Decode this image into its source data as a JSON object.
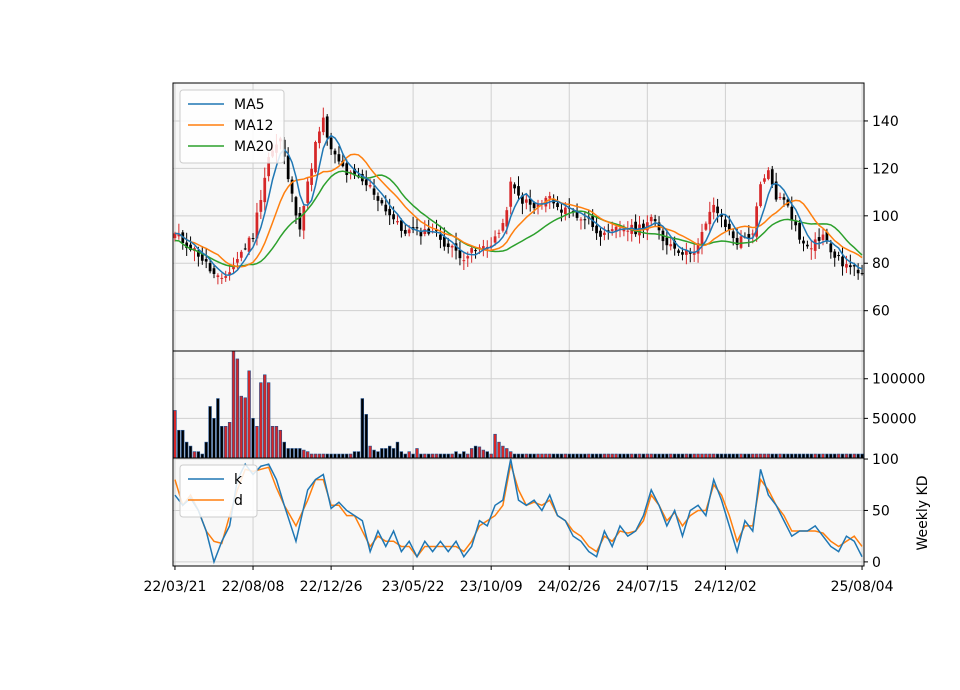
{
  "chart_data": {
    "type": "candlestick-composite",
    "x_tick_labels": [
      "22/03/21",
      "22/08/08",
      "22/12/26",
      "23/05/22",
      "23/10/09",
      "24/02/26",
      "24/07/15",
      "24/12/02",
      "25/08/04"
    ],
    "x_ticks": [
      {
        "label": "22/03/21",
        "index": 0
      },
      {
        "label": "22/08/08",
        "index": 20
      },
      {
        "label": "22/12/26",
        "index": 40
      },
      {
        "label": "23/05/22",
        "index": 61
      },
      {
        "label": "23/10/09",
        "index": 81
      },
      {
        "label": "24/02/26",
        "index": 101
      },
      {
        "label": "24/07/15",
        "index": 121
      },
      {
        "label": "24/12/02",
        "index": 141
      },
      {
        "label": "25/08/04",
        "index": 176
      }
    ],
    "n_weeks": 177,
    "price_panel": {
      "ylim": [
        43,
        156
      ],
      "yticks": [
        60,
        80,
        100,
        120,
        140
      ],
      "legend": [
        "MA5",
        "MA12",
        "MA20"
      ],
      "legend_position": "top-left",
      "close_anchors": [
        [
          0,
          92
        ],
        [
          6,
          84
        ],
        [
          10,
          75
        ],
        [
          12,
          72
        ],
        [
          16,
          82
        ],
        [
          20,
          92
        ],
        [
          24,
          125
        ],
        [
          27,
          132
        ],
        [
          30,
          108
        ],
        [
          32,
          96
        ],
        [
          36,
          130
        ],
        [
          38,
          140
        ],
        [
          40,
          127
        ],
        [
          44,
          118
        ],
        [
          50,
          112
        ],
        [
          54,
          103
        ],
        [
          58,
          94
        ],
        [
          62,
          93
        ],
        [
          66,
          94
        ],
        [
          70,
          87
        ],
        [
          74,
          83
        ],
        [
          78,
          86
        ],
        [
          80,
          87
        ],
        [
          84,
          95
        ],
        [
          86,
          113
        ],
        [
          88,
          108
        ],
        [
          92,
          103
        ],
        [
          96,
          108
        ],
        [
          98,
          102
        ],
        [
          100,
          104
        ],
        [
          103,
          100
        ],
        [
          106,
          98
        ],
        [
          110,
          91
        ],
        [
          114,
          95
        ],
        [
          118,
          94
        ],
        [
          122,
          99
        ],
        [
          125,
          90
        ],
        [
          128,
          87
        ],
        [
          131,
          84
        ],
        [
          134,
          88
        ],
        [
          136,
          96
        ],
        [
          138,
          105
        ],
        [
          140,
          98
        ],
        [
          144,
          89
        ],
        [
          148,
          93
        ],
        [
          150,
          112
        ],
        [
          152,
          118
        ],
        [
          154,
          108
        ],
        [
          157,
          105
        ],
        [
          160,
          90
        ],
        [
          163,
          88
        ],
        [
          166,
          92
        ],
        [
          168,
          85
        ],
        [
          171,
          80
        ],
        [
          174,
          77
        ],
        [
          176,
          77
        ]
      ]
    },
    "volume_panel": {
      "ylim": [
        0,
        135000
      ],
      "yticks": [
        50000,
        100000
      ],
      "values": [
        60000,
        35000,
        35000,
        20000,
        15000,
        8000,
        8000,
        5000,
        20000,
        65000,
        50000,
        75000,
        40000,
        40000,
        45000,
        135000,
        125000,
        78000,
        76000,
        110000,
        50000,
        40000,
        95000,
        105000,
        95000,
        40000,
        40000,
        35000,
        20000,
        12000,
        12000,
        12000,
        12000,
        10000,
        8000,
        5000,
        5000,
        5000,
        5000,
        5000,
        5000,
        5000,
        5000,
        5000,
        5000,
        5000,
        8000,
        8000,
        75000,
        55000,
        15000,
        10000,
        8000,
        12000,
        12000,
        15000,
        12000,
        20000,
        8000,
        5000,
        8000,
        5000,
        12000,
        5000,
        5000,
        5000,
        5000,
        5000,
        5000,
        5000,
        5000,
        5000,
        8000,
        5000,
        8000,
        5000,
        12000,
        15000,
        14000,
        10000,
        8000,
        5000,
        30000,
        20000,
        15000,
        12000,
        8000,
        5000,
        5000,
        5000,
        5000,
        5000,
        5000,
        5000,
        5000,
        5000,
        5000,
        5000,
        5000,
        5000,
        5000,
        5000,
        5000,
        5000,
        5000,
        5000,
        5000,
        5000,
        5000,
        5000,
        5000,
        5000,
        5000,
        5000,
        5000,
        5000,
        5000,
        5000,
        5000,
        5000,
        5000,
        5000,
        5000,
        5000,
        5000,
        5000,
        5000,
        5000,
        5000,
        5000,
        5000,
        5000,
        5000,
        5000,
        5000,
        5000,
        5000,
        5000,
        5000,
        5000,
        5000,
        5000,
        5000,
        5000,
        5000,
        5000,
        5000,
        5000,
        5000,
        5000,
        5000,
        5000,
        5000,
        5000,
        5000,
        5000,
        5000,
        5000,
        5000,
        5000,
        5000,
        5000,
        5000,
        5000,
        5000,
        5000,
        5000,
        5000,
        5000,
        5000,
        5000,
        5000,
        5000,
        5000,
        5000,
        5000,
        5000
      ]
    },
    "kd_panel": {
      "ylim": [
        -4,
        101
      ],
      "yticks": [
        0,
        50,
        100
      ],
      "ylabel": "Weekly KD",
      "legend": [
        "k",
        "d"
      ],
      "legend_position": "top-left",
      "k_anchors": [
        [
          0,
          65
        ],
        [
          2,
          55
        ],
        [
          4,
          62
        ],
        [
          6,
          50
        ],
        [
          8,
          30
        ],
        [
          10,
          0
        ],
        [
          12,
          20
        ],
        [
          14,
          35
        ],
        [
          16,
          80
        ],
        [
          18,
          95
        ],
        [
          20,
          85
        ],
        [
          22,
          93
        ],
        [
          24,
          95
        ],
        [
          26,
          80
        ],
        [
          28,
          55
        ],
        [
          31,
          20
        ],
        [
          34,
          70
        ],
        [
          36,
          80
        ],
        [
          38,
          85
        ],
        [
          40,
          52
        ],
        [
          42,
          58
        ],
        [
          44,
          50
        ],
        [
          46,
          45
        ],
        [
          48,
          40
        ],
        [
          50,
          10
        ],
        [
          52,
          30
        ],
        [
          54,
          15
        ],
        [
          56,
          30
        ],
        [
          58,
          10
        ],
        [
          60,
          20
        ],
        [
          62,
          5
        ],
        [
          64,
          20
        ],
        [
          66,
          10
        ],
        [
          68,
          20
        ],
        [
          70,
          10
        ],
        [
          72,
          20
        ],
        [
          74,
          5
        ],
        [
          76,
          15
        ],
        [
          78,
          40
        ],
        [
          80,
          35
        ],
        [
          82,
          55
        ],
        [
          84,
          60
        ],
        [
          86,
          100
        ],
        [
          88,
          60
        ],
        [
          90,
          55
        ],
        [
          92,
          60
        ],
        [
          94,
          50
        ],
        [
          96,
          65
        ],
        [
          98,
          45
        ],
        [
          100,
          40
        ],
        [
          102,
          25
        ],
        [
          104,
          20
        ],
        [
          106,
          10
        ],
        [
          108,
          5
        ],
        [
          110,
          30
        ],
        [
          112,
          15
        ],
        [
          114,
          35
        ],
        [
          116,
          25
        ],
        [
          118,
          30
        ],
        [
          120,
          45
        ],
        [
          122,
          70
        ],
        [
          124,
          55
        ],
        [
          126,
          35
        ],
        [
          128,
          50
        ],
        [
          130,
          25
        ],
        [
          132,
          50
        ],
        [
          134,
          55
        ],
        [
          136,
          45
        ],
        [
          138,
          80
        ],
        [
          140,
          60
        ],
        [
          142,
          35
        ],
        [
          144,
          10
        ],
        [
          146,
          40
        ],
        [
          148,
          30
        ],
        [
          150,
          90
        ],
        [
          152,
          65
        ],
        [
          154,
          55
        ],
        [
          156,
          40
        ],
        [
          158,
          25
        ],
        [
          160,
          30
        ],
        [
          162,
          30
        ],
        [
          164,
          35
        ],
        [
          166,
          25
        ],
        [
          168,
          15
        ],
        [
          170,
          10
        ],
        [
          172,
          25
        ],
        [
          174,
          20
        ],
        [
          176,
          5
        ]
      ],
      "d_anchors": [
        [
          0,
          80
        ],
        [
          2,
          55
        ],
        [
          4,
          65
        ],
        [
          6,
          50
        ],
        [
          8,
          30
        ],
        [
          10,
          20
        ],
        [
          12,
          18
        ],
        [
          14,
          45
        ],
        [
          16,
          70
        ],
        [
          18,
          90
        ],
        [
          20,
          88
        ],
        [
          22,
          90
        ],
        [
          24,
          92
        ],
        [
          26,
          72
        ],
        [
          28,
          55
        ],
        [
          31,
          35
        ],
        [
          34,
          60
        ],
        [
          36,
          80
        ],
        [
          38,
          80
        ],
        [
          40,
          55
        ],
        [
          42,
          55
        ],
        [
          44,
          45
        ],
        [
          46,
          45
        ],
        [
          48,
          30
        ],
        [
          50,
          15
        ],
        [
          52,
          25
        ],
        [
          54,
          20
        ],
        [
          56,
          20
        ],
        [
          58,
          15
        ],
        [
          60,
          15
        ],
        [
          62,
          5
        ],
        [
          64,
          15
        ],
        [
          66,
          15
        ],
        [
          68,
          15
        ],
        [
          70,
          15
        ],
        [
          72,
          15
        ],
        [
          74,
          10
        ],
        [
          76,
          20
        ],
        [
          78,
          35
        ],
        [
          80,
          40
        ],
        [
          82,
          45
        ],
        [
          84,
          55
        ],
        [
          86,
          95
        ],
        [
          88,
          70
        ],
        [
          90,
          55
        ],
        [
          92,
          58
        ],
        [
          94,
          55
        ],
        [
          96,
          60
        ],
        [
          98,
          45
        ],
        [
          100,
          40
        ],
        [
          102,
          30
        ],
        [
          104,
          25
        ],
        [
          106,
          15
        ],
        [
          108,
          10
        ],
        [
          110,
          25
        ],
        [
          112,
          20
        ],
        [
          114,
          30
        ],
        [
          116,
          28
        ],
        [
          118,
          30
        ],
        [
          120,
          40
        ],
        [
          122,
          65
        ],
        [
          124,
          55
        ],
        [
          126,
          40
        ],
        [
          128,
          48
        ],
        [
          130,
          35
        ],
        [
          132,
          45
        ],
        [
          134,
          50
        ],
        [
          136,
          50
        ],
        [
          138,
          75
        ],
        [
          140,
          65
        ],
        [
          142,
          45
        ],
        [
          144,
          20
        ],
        [
          146,
          35
        ],
        [
          148,
          35
        ],
        [
          150,
          80
        ],
        [
          152,
          70
        ],
        [
          154,
          55
        ],
        [
          156,
          45
        ],
        [
          158,
          30
        ],
        [
          160,
          30
        ],
        [
          162,
          30
        ],
        [
          164,
          30
        ],
        [
          166,
          28
        ],
        [
          168,
          20
        ],
        [
          170,
          15
        ],
        [
          172,
          20
        ],
        [
          174,
          25
        ],
        [
          176,
          15
        ]
      ]
    },
    "colors": {
      "ma5": "#1f77b4",
      "ma12": "#ff7f0e",
      "ma20": "#2ca02c",
      "k": "#1f77b4",
      "d": "#ff7f0e",
      "up": "#d62728",
      "down": "#000000",
      "volume_edge": "#1f4e8c",
      "panel_bg": "#f8f8f8",
      "grid": "#d0d0d0"
    },
    "grid": true
  }
}
